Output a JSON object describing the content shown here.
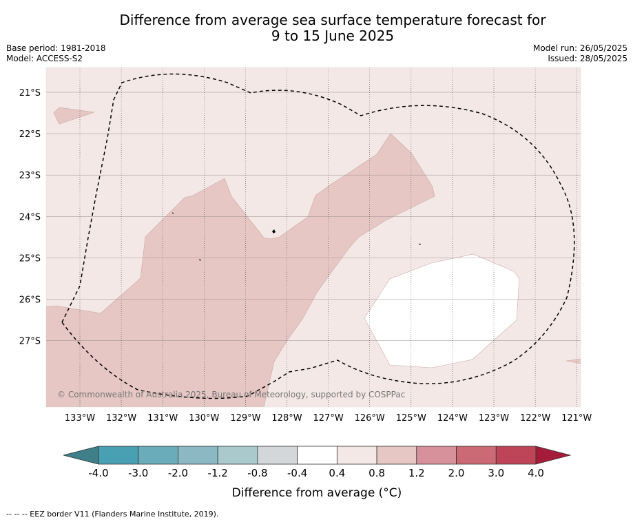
{
  "title_line1": "Difference from average sea surface temperature forecast for",
  "title_line2": "9 to 15 June 2025",
  "meta": {
    "base_period": "Base period: 1981-2018",
    "model": "Model: ACCESS-S2",
    "model_run": "Model run: 26/05/2025",
    "issued": "Issued: 28/05/2025"
  },
  "map": {
    "lat_labels": [
      "21°S",
      "22°S",
      "23°S",
      "24°S",
      "25°S",
      "26°S",
      "27°S"
    ],
    "lon_labels": [
      "133°W",
      "132°W",
      "131°W",
      "130°W",
      "129°W",
      "128°W",
      "127°W",
      "126°W",
      "125°W",
      "124°W",
      "123°W",
      "122°W",
      "121°W"
    ],
    "copyright": "© Commonwealth of Australia 2025, Bureau of Meteorology, supported by COSPPac",
    "colors": {
      "background_0_4_0_8": "#f4e8e7",
      "band_0_8_1_2": "#e6c7c3",
      "band_neutral": "#ffffff",
      "eez_border": "#000000"
    }
  },
  "colorbar": {
    "tick_labels": [
      "-4.0",
      "-3.0",
      "-2.0",
      "-1.2",
      "-0.8",
      "-0.4",
      "0.4",
      "0.8",
      "1.2",
      "2.0",
      "3.0",
      "4.0"
    ],
    "colors": [
      "#3f7f8a",
      "#48a0b2",
      "#6aacba",
      "#8cb8c4",
      "#a9c9cd",
      "#d3d7da",
      "#ffffff",
      "#f4e8e7",
      "#e6c7c3",
      "#d7919a",
      "#cb6a74",
      "#be4558",
      "#a51c3a"
    ],
    "title": "Difference from average (°C)"
  },
  "footer": "--  --  -- EEZ border V11 (Flanders Marine Institute, 2019)."
}
